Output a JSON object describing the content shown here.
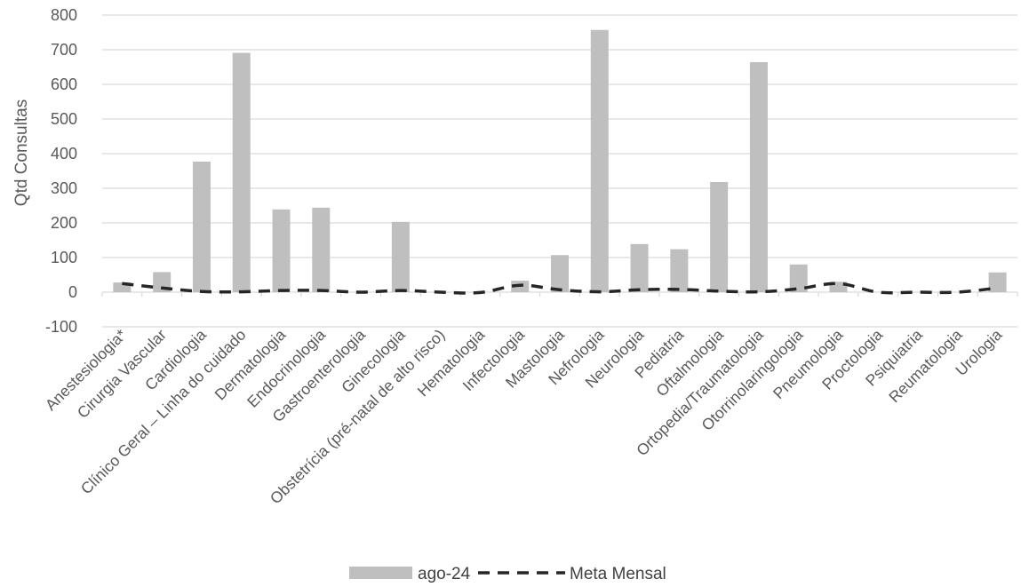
{
  "chart_data": {
    "type": "bar",
    "title": "",
    "xlabel": "",
    "ylabel": "Qtd Consultas",
    "ylim": [
      -100,
      800
    ],
    "yticks": [
      -100,
      0,
      100,
      200,
      300,
      400,
      500,
      600,
      700,
      800
    ],
    "grid": true,
    "legend_position": "bottom",
    "categories": [
      "Anestesiologia*",
      "Cirurgia Vascular",
      "Cardiologia",
      "Clínico Geral – Linha do cuidado",
      "Dermatologia",
      "Endocrinologia",
      "Gastroenterologia",
      "Ginecologia",
      "Obstetrícia (pré-natal de alto risco)",
      "Hematologia",
      "Infectologia",
      "Mastologia",
      "Nefrologia",
      "Neurologia",
      "Pediatria",
      "Oftalmologia",
      "Ortopedia/Traumatologia",
      "Otorrinolaringologia",
      "Pneumologia",
      "Proctologia",
      "Psiquiatria",
      "Reumatologia",
      "Urologia"
    ],
    "series": [
      {
        "name": "ago-24",
        "kind": "bar",
        "color": "#bfbfbf",
        "values": [
          28,
          58,
          377,
          691,
          239,
          244,
          0,
          203,
          0,
          0,
          33,
          107,
          757,
          139,
          124,
          318,
          664,
          80,
          30,
          0,
          0,
          0,
          57
        ]
      },
      {
        "name": "Meta Mensal",
        "kind": "line",
        "style": "dashed",
        "color": "#262626",
        "values": [
          25,
          12,
          2,
          1,
          5,
          5,
          0,
          5,
          0,
          -1,
          20,
          7,
          1,
          7,
          8,
          3,
          1,
          10,
          25,
          0,
          0,
          0,
          12
        ]
      }
    ]
  }
}
